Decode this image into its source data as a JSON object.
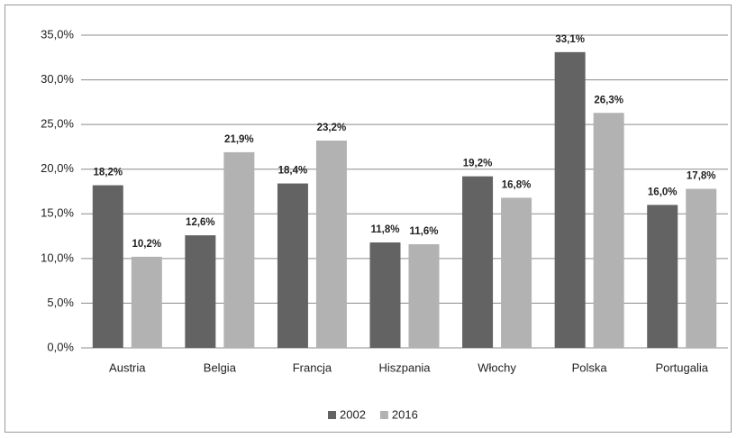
{
  "chart_data": {
    "type": "bar",
    "categories": [
      "Austria",
      "Belgia",
      "Francja",
      "Hiszpania",
      "Włochy",
      "Polska",
      "Portugalia"
    ],
    "series": [
      {
        "name": "2002",
        "color": "#636363",
        "values": [
          18.2,
          12.6,
          18.4,
          11.8,
          19.2,
          33.1,
          16.0
        ],
        "value_labels": [
          "18,2%",
          "12,6%",
          "18,4%",
          "11,8%",
          "19,2%",
          "33,1%",
          "16,0%"
        ]
      },
      {
        "name": "2016",
        "color": "#b2b2b2",
        "values": [
          10.2,
          21.9,
          23.2,
          11.6,
          16.8,
          26.3,
          17.8
        ],
        "value_labels": [
          "10,2%",
          "21,9%",
          "23,2%",
          "11,6%",
          "16,8%",
          "26,3%",
          "17,8%"
        ]
      }
    ],
    "ylim": [
      0,
      35
    ],
    "yticks": [
      {
        "value": 0,
        "label": "0,0%"
      },
      {
        "value": 5,
        "label": "5,0%"
      },
      {
        "value": 10,
        "label": "10,0%"
      },
      {
        "value": 15,
        "label": "15,0%"
      },
      {
        "value": 20,
        "label": "20,0%"
      },
      {
        "value": 25,
        "label": "25,0%"
      },
      {
        "value": 30,
        "label": "30,0%"
      },
      {
        "value": 35,
        "label": "35,0%"
      }
    ],
    "grid": true,
    "legend": "bottom"
  }
}
